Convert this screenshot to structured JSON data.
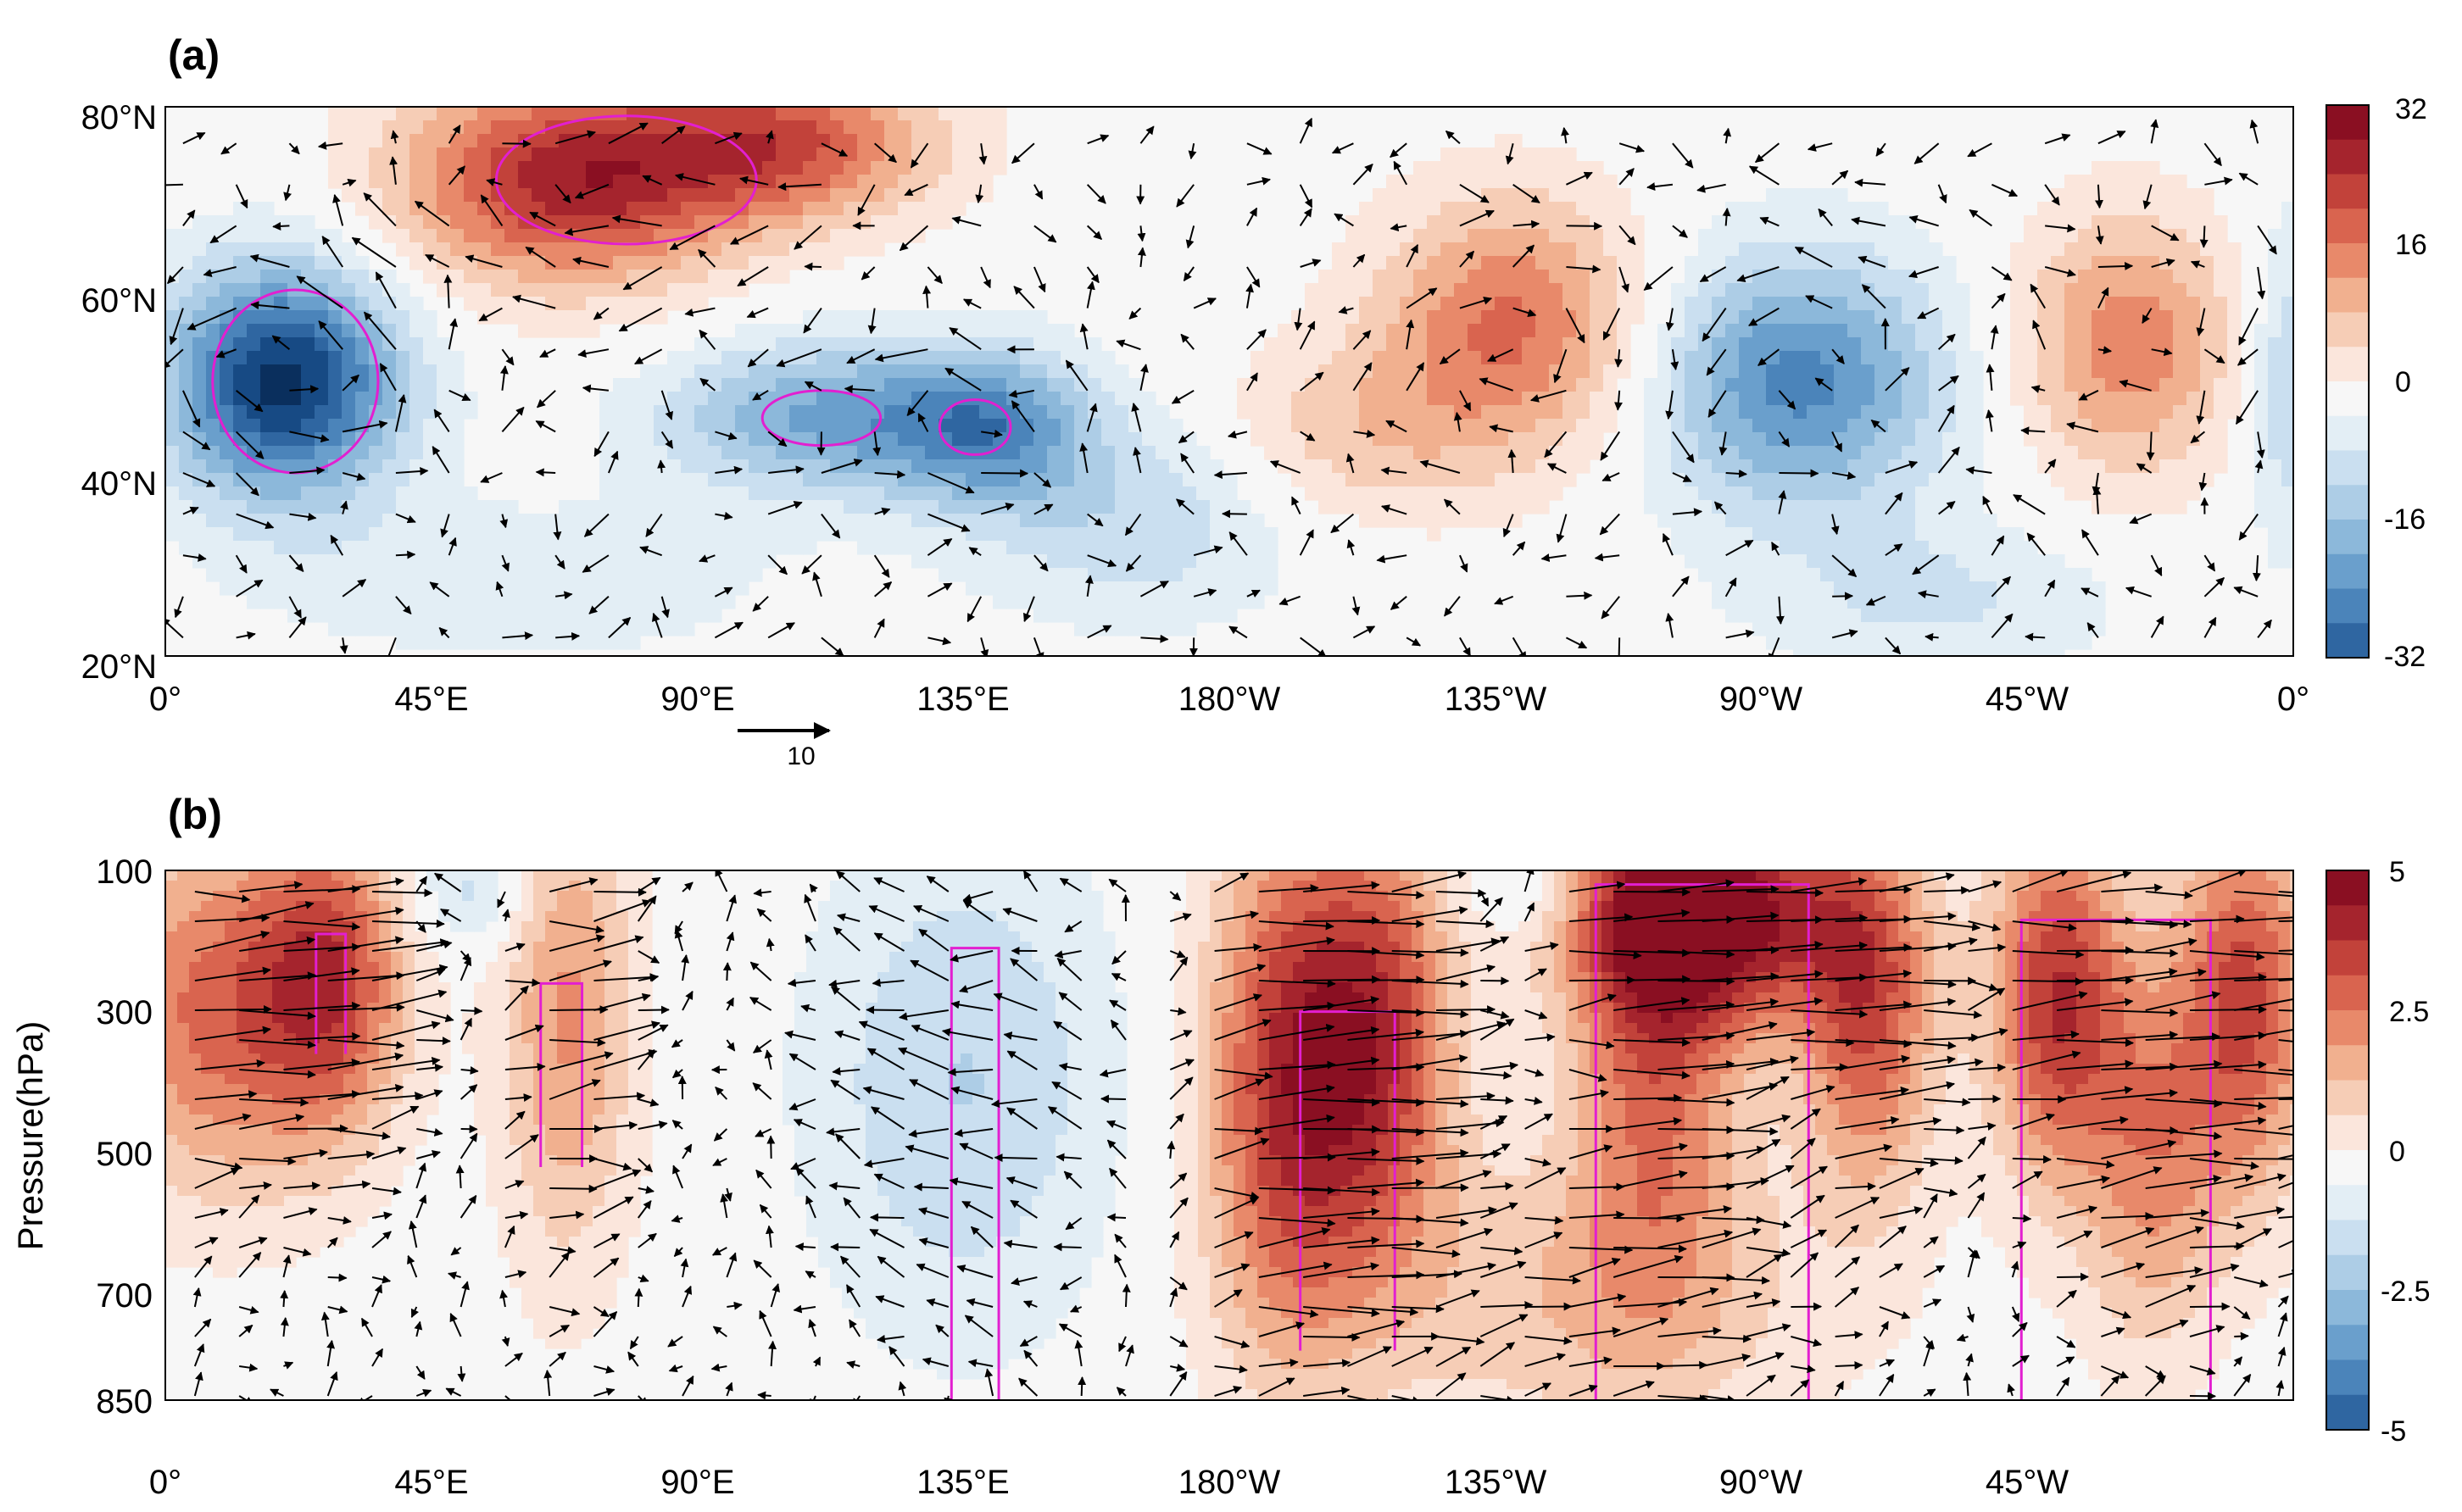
{
  "colors": {
    "pos": [
      "#fbe6dc",
      "#f6cdb6",
      "#f1b08f",
      "#e8896a",
      "#d9644f",
      "#c2423a",
      "#a5242d",
      "#8a0f22"
    ],
    "neg": [
      "#e3eef5",
      "#cadff0",
      "#adcde6",
      "#8cb8da",
      "#6a9fcc",
      "#4b84ba",
      "#2f66a1",
      "#174a84",
      "#0a2f5d"
    ],
    "center": "#f7f7f7",
    "contour": "#e21fd0",
    "vector": "#000000"
  },
  "chart_data": [
    {
      "panel": "(a)",
      "type": "heatmap",
      "subtype": "filled contour map with wind vectors",
      "x_ticks": [
        "0°",
        "45°E",
        "90°E",
        "135°E",
        "180°W",
        "135°W",
        "90°W",
        "45°W",
        "0°"
      ],
      "x_values": [
        0,
        45,
        90,
        135,
        180,
        225,
        270,
        315,
        360
      ],
      "y_ticks": [
        "20°N",
        "40°N",
        "60°N",
        "80°N"
      ],
      "y_values": [
        20,
        40,
        60,
        80
      ],
      "xlim": [
        0,
        360
      ],
      "ylim": [
        20,
        80
      ],
      "colorbar": {
        "ticks": [
          "32",
          "16",
          "0",
          "-16",
          "-32"
        ],
        "values": [
          32,
          16,
          0,
          -16,
          -32
        ],
        "range": [
          -32,
          32
        ]
      },
      "reference_vector": {
        "label": "10",
        "magnitude": 10
      },
      "anomaly_centers": [
        {
          "lon": 20,
          "lat": 50,
          "value": -30,
          "sx": 14,
          "sy": 9
        },
        {
          "lon": 68,
          "lat": 72,
          "value": 26,
          "sx": 20,
          "sy": 8
        },
        {
          "lon": 105,
          "lat": 76,
          "value": 20,
          "sx": 18,
          "sy": 6
        },
        {
          "lon": 112,
          "lat": 46,
          "value": -16,
          "sx": 20,
          "sy": 6
        },
        {
          "lon": 140,
          "lat": 45,
          "value": -15,
          "sx": 12,
          "sy": 6
        },
        {
          "lon": 165,
          "lat": 35,
          "value": -8,
          "sx": 20,
          "sy": 8
        },
        {
          "lon": 228,
          "lat": 56,
          "value": 18,
          "sx": 16,
          "sy": 10
        },
        {
          "lon": 200,
          "lat": 44,
          "value": 8,
          "sx": 16,
          "sy": 7
        },
        {
          "lon": 276,
          "lat": 50,
          "value": -20,
          "sx": 18,
          "sy": 10
        },
        {
          "lon": 332,
          "lat": 54,
          "value": 16,
          "sx": 13,
          "sy": 10
        },
        {
          "lon": 300,
          "lat": 26,
          "value": -6,
          "sx": 22,
          "sy": 6
        },
        {
          "lon": 360,
          "lat": 50,
          "value": -10,
          "sx": 6,
          "sy": 12
        },
        {
          "lon": 60,
          "lat": 28,
          "value": -5,
          "sx": 30,
          "sy": 6
        }
      ],
      "significance_contours": [
        {
          "lon": 22,
          "lat": 50,
          "rlon": 14,
          "rlat": 10
        },
        {
          "lon": 78,
          "lat": 72,
          "rlon": 22,
          "rlat": 7
        },
        {
          "lon": 111,
          "lat": 46,
          "rlon": 10,
          "rlat": 3
        },
        {
          "lon": 137,
          "lat": 45,
          "rlon": 6,
          "rlat": 3
        }
      ]
    },
    {
      "panel": "(b)",
      "type": "heatmap",
      "subtype": "longitude-pressure cross section with vectors",
      "ylabel": "Pressure(hPa)",
      "x_ticks": [
        "0°",
        "45°E",
        "90°E",
        "135°E",
        "180°W",
        "135°W",
        "90°W",
        "45°W"
      ],
      "x_values": [
        0,
        45,
        90,
        135,
        180,
        225,
        270,
        315
      ],
      "y_ticks": [
        "100",
        "300",
        "500",
        "700",
        "850"
      ],
      "y_values": [
        100,
        300,
        500,
        700,
        850
      ],
      "xlim": [
        0,
        360
      ],
      "ylim": [
        100,
        850
      ],
      "colorbar": {
        "ticks": [
          "5",
          "2.5",
          "0",
          "-2.5",
          "-5"
        ],
        "values": [
          5,
          2.5,
          0,
          -2.5,
          -5
        ],
        "range": [
          -5,
          5
        ]
      },
      "anomaly_centers": [
        {
          "lon": 8,
          "p": 300,
          "value": 2.8,
          "sx": 14,
          "sy": 180
        },
        {
          "lon": 28,
          "p": 250,
          "value": 3.2,
          "sx": 9,
          "sy": 160
        },
        {
          "lon": 68,
          "p": 300,
          "value": 2.2,
          "sx": 8,
          "sy": 250
        },
        {
          "lon": 52,
          "p": 130,
          "value": -1.2,
          "sx": 8,
          "sy": 60
        },
        {
          "lon": 135,
          "p": 400,
          "value": -1.4,
          "sx": 18,
          "sy": 250
        },
        {
          "lon": 190,
          "p": 400,
          "value": 3.8,
          "sx": 10,
          "sy": 260
        },
        {
          "lon": 206,
          "p": 330,
          "value": 3.2,
          "sx": 9,
          "sy": 220
        },
        {
          "lon": 262,
          "p": 160,
          "value": 4.8,
          "sx": 16,
          "sy": 110
        },
        {
          "lon": 288,
          "p": 300,
          "value": 3.2,
          "sx": 8,
          "sy": 180
        },
        {
          "lon": 252,
          "p": 330,
          "value": 2.8,
          "sx": 10,
          "sy": 260
        },
        {
          "lon": 320,
          "p": 280,
          "value": 3.8,
          "sx": 8,
          "sy": 180
        },
        {
          "lon": 352,
          "p": 280,
          "value": 3.4,
          "sx": 8,
          "sy": 200
        },
        {
          "lon": 336,
          "p": 500,
          "value": 2.2,
          "sx": 8,
          "sy": 200
        },
        {
          "lon": 240,
          "p": 700,
          "value": 1.4,
          "sx": 30,
          "sy": 150
        },
        {
          "lon": 230,
          "p": 120,
          "value": -0.9,
          "sx": 8,
          "sy": 50
        }
      ],
      "significance_contours": [
        {
          "lon": 28,
          "p1": 190,
          "p2": 360,
          "half_width": 2.5
        },
        {
          "lon": 67,
          "p1": 260,
          "p2": 520,
          "half_width": 3.5
        },
        {
          "lon": 137,
          "p1": 210,
          "p2": 850,
          "half_width": 4
        },
        {
          "lon": 200,
          "p1": 300,
          "p2": 780,
          "half_width": 8
        },
        {
          "lon": 260,
          "p1": 120,
          "p2": 850,
          "half_width": 18
        },
        {
          "lon": 330,
          "p1": 170,
          "p2": 850,
          "half_width": 16
        }
      ]
    }
  ]
}
